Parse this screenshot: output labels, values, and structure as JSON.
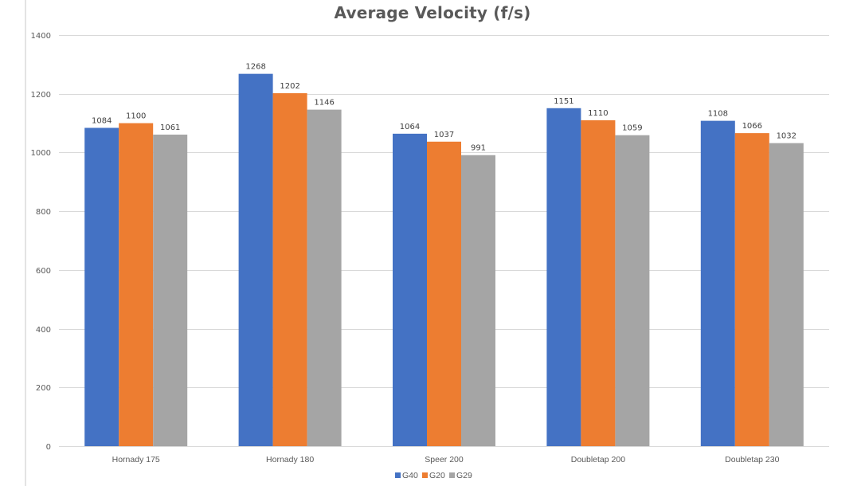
{
  "chart_data": {
    "type": "bar",
    "title": "Average Velocity (f/s)",
    "xlabel": "",
    "ylabel": "",
    "categories": [
      "Hornady 175",
      "Hornady 180",
      "Speer 200",
      "Doubletap 200",
      "Doubletap 230"
    ],
    "series": [
      {
        "name": "G40",
        "color": "#4472c4",
        "values": [
          1084,
          1268,
          1064,
          1151,
          1108
        ]
      },
      {
        "name": "G20",
        "color": "#ed7d31",
        "values": [
          1100,
          1202,
          1037,
          1110,
          1066
        ]
      },
      {
        "name": "G29",
        "color": "#a5a5a5",
        "values": [
          1061,
          1146,
          991,
          1059,
          1032
        ]
      }
    ],
    "ylim": [
      0,
      1400
    ],
    "yticks": [
      0,
      200,
      400,
      600,
      800,
      1000,
      1200,
      1400
    ],
    "grid": true,
    "data_labels": true,
    "legend_position": "bottom"
  }
}
